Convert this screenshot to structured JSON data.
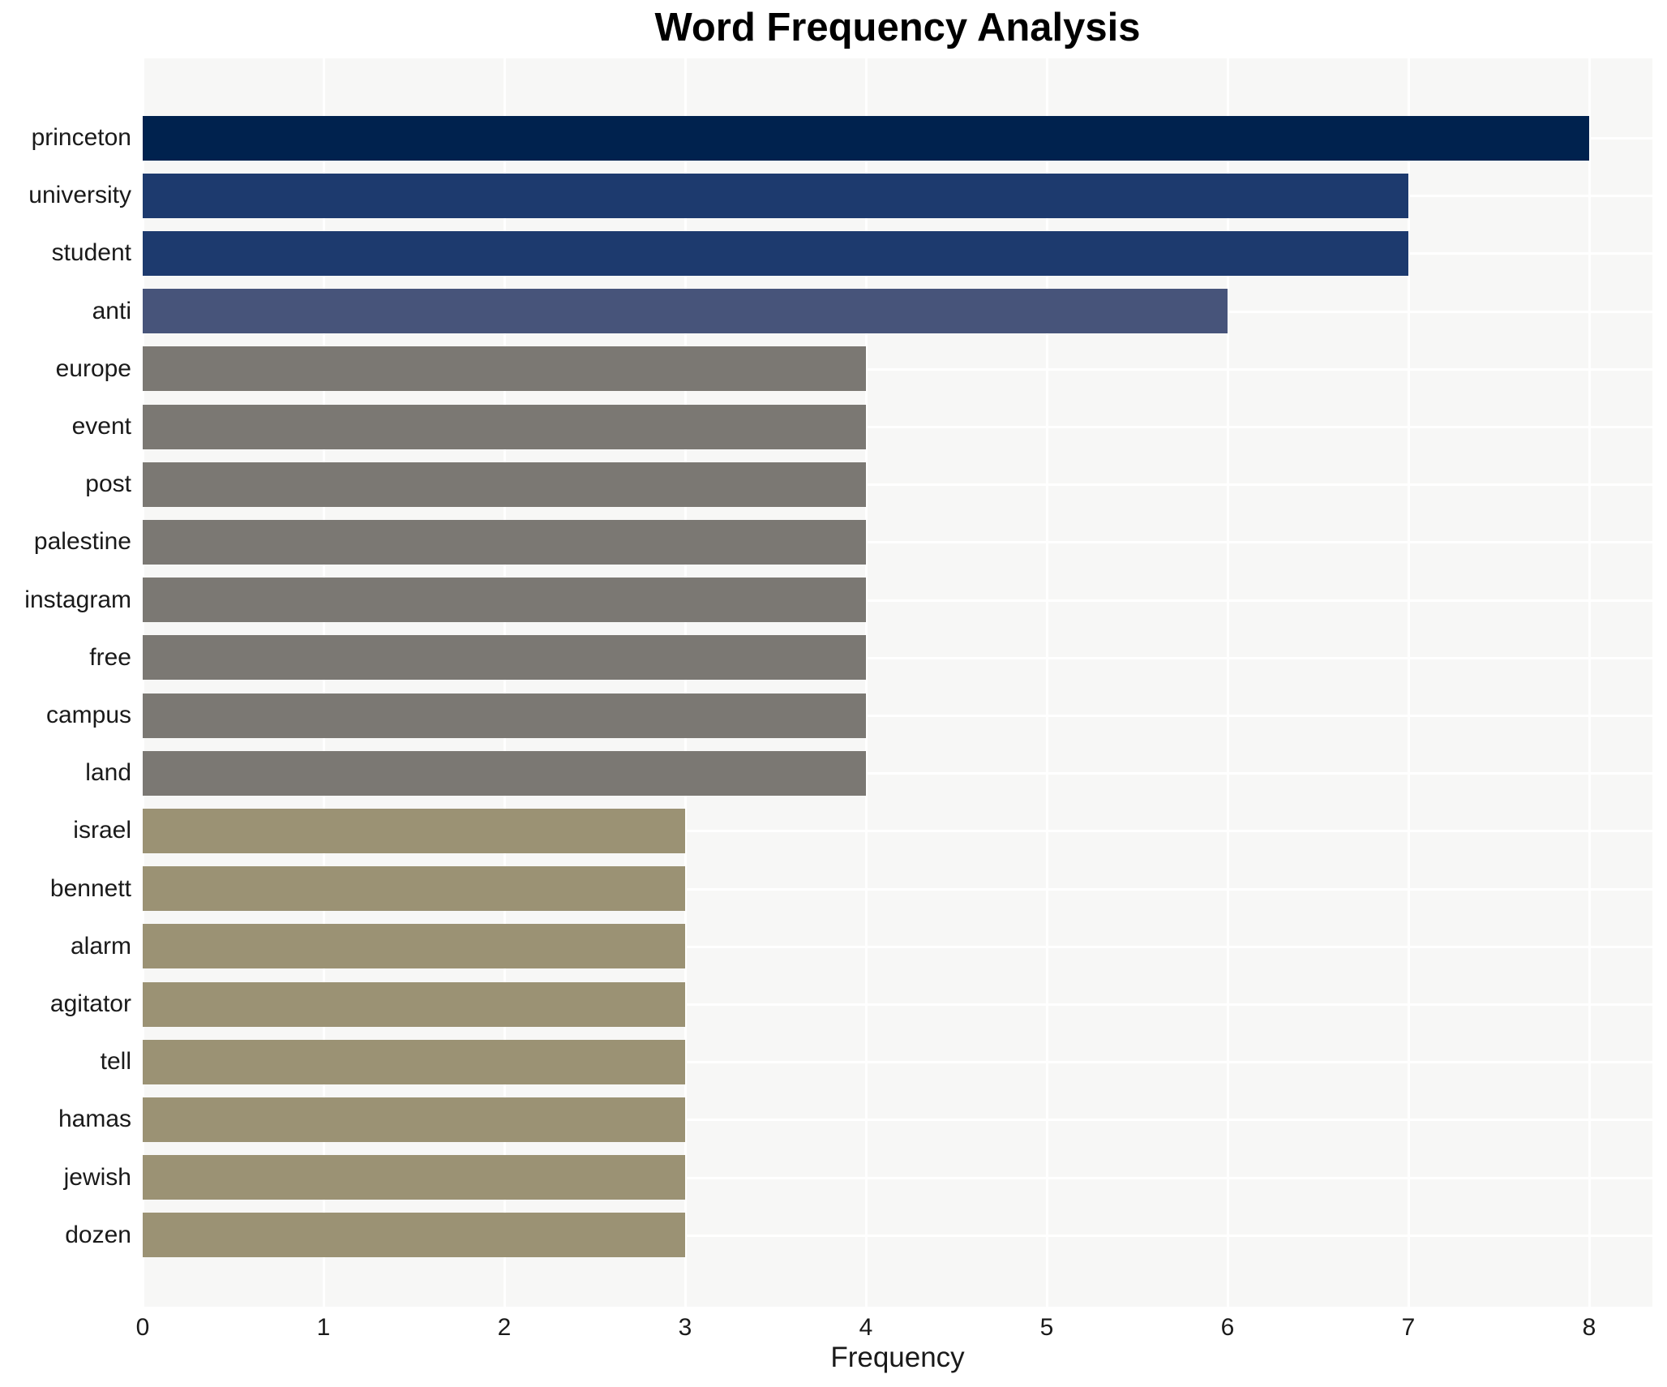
{
  "chart_data": {
    "type": "bar",
    "orientation": "horizontal",
    "title": "Word Frequency Analysis",
    "xlabel": "Frequency",
    "ylabel": "",
    "xlim": [
      0,
      8.35
    ],
    "xticks": [
      0,
      1,
      2,
      3,
      4,
      5,
      6,
      7,
      8
    ],
    "grid": true,
    "legend_position": "none",
    "plot_background": "#f7f7f6",
    "gridline_color": "#ffffff",
    "tick_text_color": "#1a1a1a",
    "title_color": "#000000",
    "categories": [
      "princeton",
      "university",
      "student",
      "anti",
      "europe",
      "event",
      "post",
      "palestine",
      "instagram",
      "free",
      "campus",
      "land",
      "israel",
      "bennett",
      "alarm",
      "agitator",
      "tell",
      "hamas",
      "jewish",
      "dozen"
    ],
    "values": [
      8,
      7,
      7,
      6,
      4,
      4,
      4,
      4,
      4,
      4,
      4,
      4,
      3,
      3,
      3,
      3,
      3,
      3,
      3,
      3
    ],
    "bar_colors": [
      "#00224e",
      "#1d3a6e",
      "#1d3a6e",
      "#47547a",
      "#7b7873",
      "#7b7873",
      "#7b7873",
      "#7b7873",
      "#7b7873",
      "#7b7873",
      "#7b7873",
      "#7b7873",
      "#9b9274",
      "#9b9274",
      "#9b9274",
      "#9b9274",
      "#9b9274",
      "#9b9274",
      "#9b9274",
      "#9b9274"
    ]
  }
}
